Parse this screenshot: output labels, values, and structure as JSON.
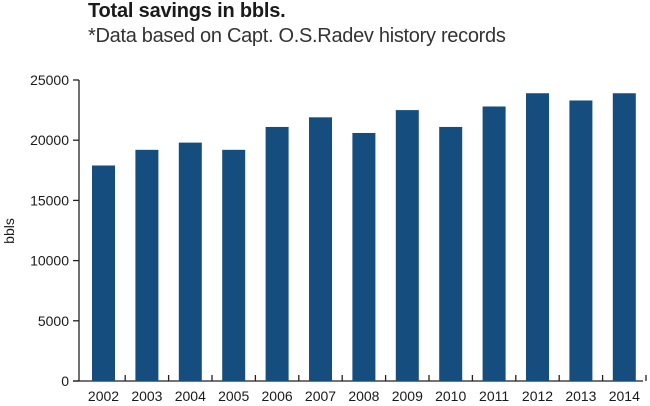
{
  "chart_data": {
    "type": "bar",
    "title": "Total savings in bbls.",
    "subtitle": "*Data based on Capt. O.S.Radev history records",
    "xlabel": "",
    "ylabel": "bbls",
    "ylim": [
      0,
      25000
    ],
    "yticks": [
      0,
      5000,
      10000,
      15000,
      20000,
      25000
    ],
    "ytick_labels": [
      "0",
      "5000",
      "10000",
      "15000",
      "20000",
      "25000"
    ],
    "categories": [
      "2002",
      "2003",
      "2004",
      "2005",
      "2006",
      "2007",
      "2008",
      "2009",
      "2010",
      "2011",
      "2012",
      "2013",
      "2014"
    ],
    "values": [
      17900,
      19200,
      19800,
      19200,
      21100,
      21900,
      20600,
      22500,
      21100,
      22800,
      23900,
      23300,
      23900
    ],
    "grid": false,
    "legend": "none",
    "bar_color": "#154e7e"
  }
}
